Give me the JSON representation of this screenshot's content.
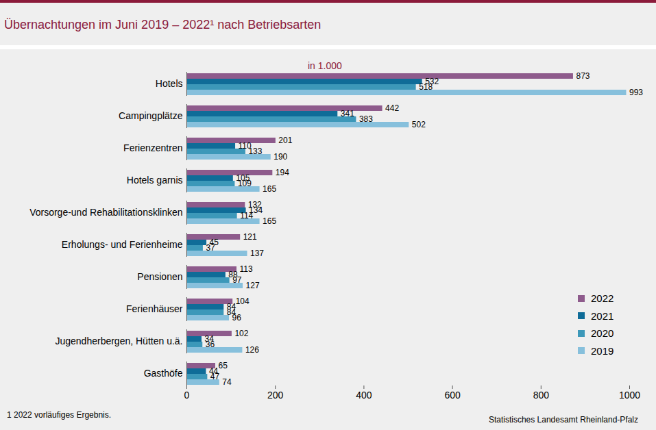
{
  "chart_data": {
    "type": "bar",
    "title": "Übernachtungen im Juni 2019 – 2022¹ nach Betriebsarten",
    "subtitle": "in 1.000",
    "footnote": "1 2022 vorläufiges Ergebnis.",
    "source": "Statistisches Landesamt Rheinland-Pfalz",
    "orientation": "horizontal",
    "categories": [
      "Hotels",
      "Campingplätze",
      "Ferienzentren",
      "Hotels garnis",
      "Vorsorge-und Rehabilitationsklinken",
      "Erholungs- und Ferienheime",
      "Pensionen",
      "Ferienhäuser",
      "Jugendherbergen, Hütten u.ä.",
      "Gasthöfe"
    ],
    "series": [
      {
        "name": "2022",
        "color": "#8e5b8c",
        "values": [
          873,
          442,
          201,
          194,
          132,
          121,
          113,
          104,
          102,
          65
        ]
      },
      {
        "name": "2021",
        "color": "#0f6c98",
        "values": [
          532,
          341,
          110,
          105,
          134,
          45,
          88,
          84,
          34,
          44
        ]
      },
      {
        "name": "2020",
        "color": "#3c98b9",
        "values": [
          518,
          383,
          133,
          109,
          114,
          37,
          97,
          84,
          36,
          47
        ]
      },
      {
        "name": "2019",
        "color": "#87c0dc",
        "values": [
          993,
          502,
          190,
          165,
          165,
          137,
          127,
          96,
          126,
          74
        ]
      }
    ],
    "xlim": [
      0,
      1000
    ],
    "xticks": [
      0,
      200,
      400,
      600,
      800,
      1000
    ],
    "grid": false,
    "data_labels": true,
    "legend": "lower right"
  }
}
